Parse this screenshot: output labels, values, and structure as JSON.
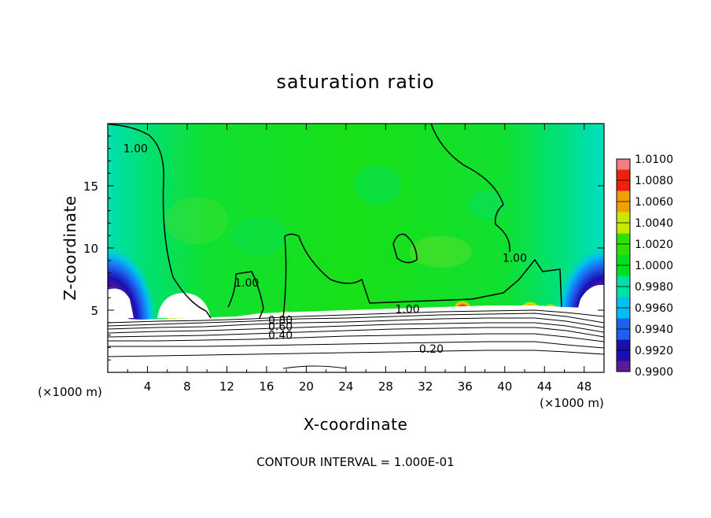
{
  "chart_data": {
    "type": "contour",
    "title": "saturation ratio",
    "xlabel": "X-coordinate",
    "ylabel": "Z-coordinate",
    "x_unit": "(×1000 m)",
    "z_unit": "(×1000 m)",
    "xlim": [
      0,
      50
    ],
    "ylim": [
      0,
      20
    ],
    "x_ticks": [
      4,
      8,
      12,
      16,
      20,
      24,
      28,
      32,
      36,
      40,
      44,
      48
    ],
    "x_tick_labels": [
      "4",
      "8",
      "12",
      "16",
      "20",
      "24",
      "28",
      "32",
      "36",
      "40",
      "44",
      "48"
    ],
    "y_ticks": [
      5,
      10,
      15
    ],
    "y_tick_labels": [
      "5",
      "10",
      "15"
    ],
    "colorbar": {
      "levels": [
        0.99,
        0.992,
        0.994,
        0.996,
        0.998,
        1.0,
        1.002,
        1.004,
        1.006,
        1.008,
        1.01
      ],
      "labels": [
        "0.9900",
        "0.9920",
        "0.9940",
        "0.9960",
        "0.9980",
        "1.0000",
        "1.0020",
        "1.0040",
        "1.0060",
        "1.0080",
        "1.0100"
      ],
      "colors": [
        "#5a1a9a",
        "#1a10b0",
        "#1e60f0",
        "#00c0f0",
        "#00e0a0",
        "#00e020",
        "#30e000",
        "#c8e800",
        "#f0a000",
        "#f02010",
        "#f08080"
      ]
    },
    "contour_labels": [
      {
        "text": "1.00",
        "x": 2.8,
        "z": 18.0
      },
      {
        "text": "1.00",
        "x": 14.0,
        "z": 7.2
      },
      {
        "text": "1.00",
        "x": 30.2,
        "z": 5.1
      },
      {
        "text": "1.00",
        "x": 41.0,
        "z": 9.2
      },
      {
        "text": "0.80",
        "x": 17.4,
        "z": 4.2
      },
      {
        "text": "0.60",
        "x": 17.4,
        "z": 3.7
      },
      {
        "text": "0.40",
        "x": 17.4,
        "z": 3.0
      },
      {
        "text": "0.20",
        "x": 32.6,
        "z": 1.9
      }
    ],
    "contour_interval_text": "CONTOUR INTERVAL = 1.000E-01"
  }
}
